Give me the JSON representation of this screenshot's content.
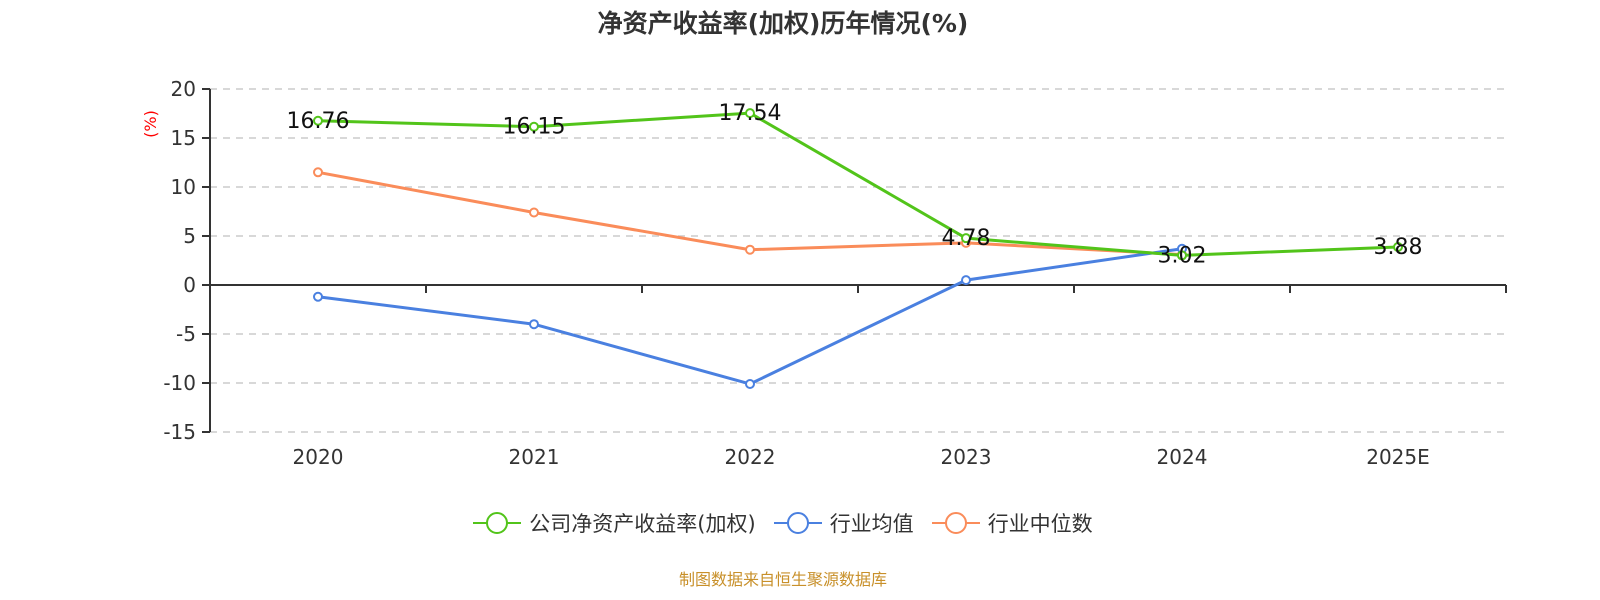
{
  "title": "净资产收益率(加权)历年情况(%)",
  "source": "制图数据来自恒生聚源数据库",
  "colors": {
    "company": "#52c41a",
    "industry_avg": "#4a80e0",
    "industry_median": "#fa8c5a",
    "axis": "#333333",
    "grid": "#cccccc",
    "ylabel": "#ff0000",
    "source": "#c8902a"
  },
  "legend": [
    {
      "label": "公司净资产收益率(加权)",
      "color": "#52c41a"
    },
    {
      "label": "行业均值",
      "color": "#4a80e0"
    },
    {
      "label": "行业中位数",
      "color": "#fa8c5a"
    }
  ],
  "chart_data": {
    "type": "line",
    "title": "净资产收益率(加权)历年情况(%)",
    "xlabel": "",
    "ylabel": "(%)",
    "categories": [
      "2020",
      "2021",
      "2022",
      "2023",
      "2024",
      "2025E"
    ],
    "ylim": [
      -15,
      20
    ],
    "yticks": [
      20,
      15,
      10,
      5,
      0,
      -5,
      -10,
      -15
    ],
    "grid": "horizontal dashed",
    "legend_position": "bottom",
    "series": [
      {
        "name": "公司净资产收益率(加权)",
        "values": [
          16.76,
          16.15,
          17.54,
          4.78,
          3.02,
          3.88
        ],
        "labels_shown": true
      },
      {
        "name": "行业均值",
        "values": [
          -1.2,
          -4.0,
          -10.1,
          0.5,
          3.7,
          null
        ]
      },
      {
        "name": "行业中位数",
        "values": [
          11.5,
          7.4,
          3.6,
          4.3,
          3.1,
          null
        ]
      }
    ]
  }
}
